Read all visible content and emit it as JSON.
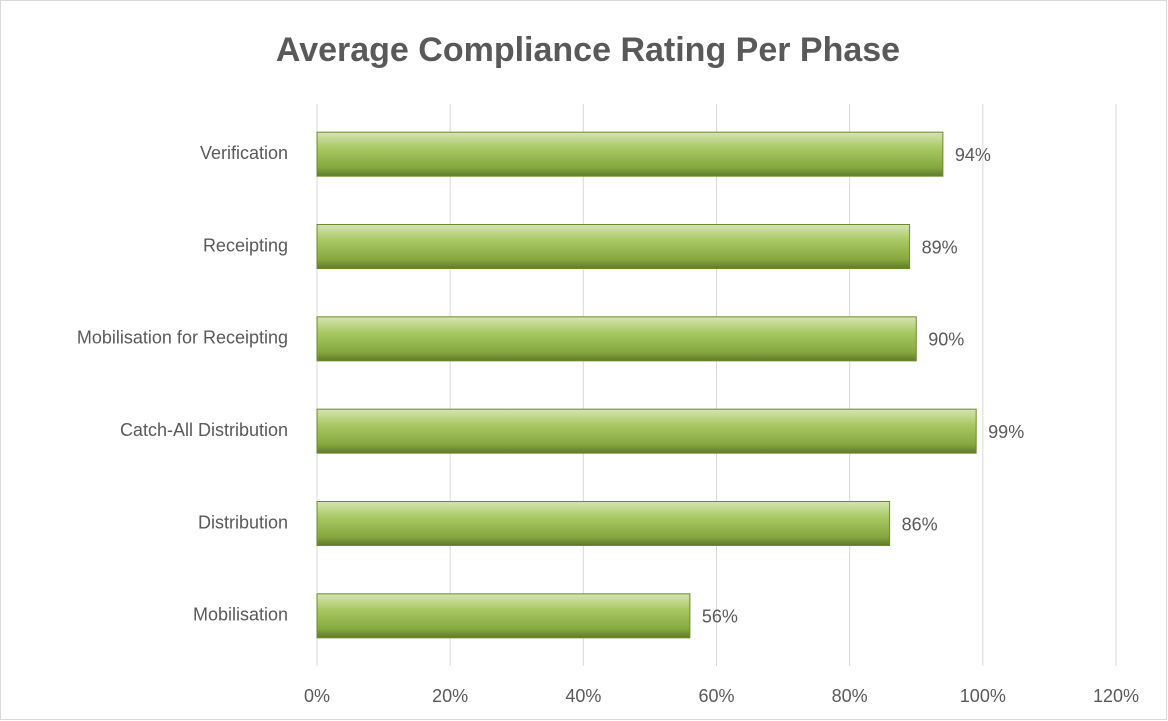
{
  "chart_data": {
    "type": "bar",
    "orientation": "horizontal",
    "title": "Average Compliance Rating Per Phase",
    "categories": [
      "Verification",
      "Receipting",
      "Mobilisation for Receipting",
      "Catch-All Distribution",
      "Distribution",
      "Mobilisation"
    ],
    "values": [
      94,
      89,
      90,
      99,
      86,
      56
    ],
    "value_labels": [
      "94%",
      "89%",
      "90%",
      "99%",
      "86%",
      "56%"
    ],
    "color": "#9bbb59",
    "xlim": [
      0,
      120
    ],
    "xticks": [
      {
        "value": 0,
        "label": "0%"
      },
      {
        "value": 20,
        "label": "20%"
      },
      {
        "value": 40,
        "label": "40%"
      },
      {
        "value": 60,
        "label": "60%"
      },
      {
        "value": 80,
        "label": "80%"
      },
      {
        "value": 100,
        "label": "100%"
      },
      {
        "value": 120,
        "label": "120%"
      }
    ],
    "grid": true
  }
}
